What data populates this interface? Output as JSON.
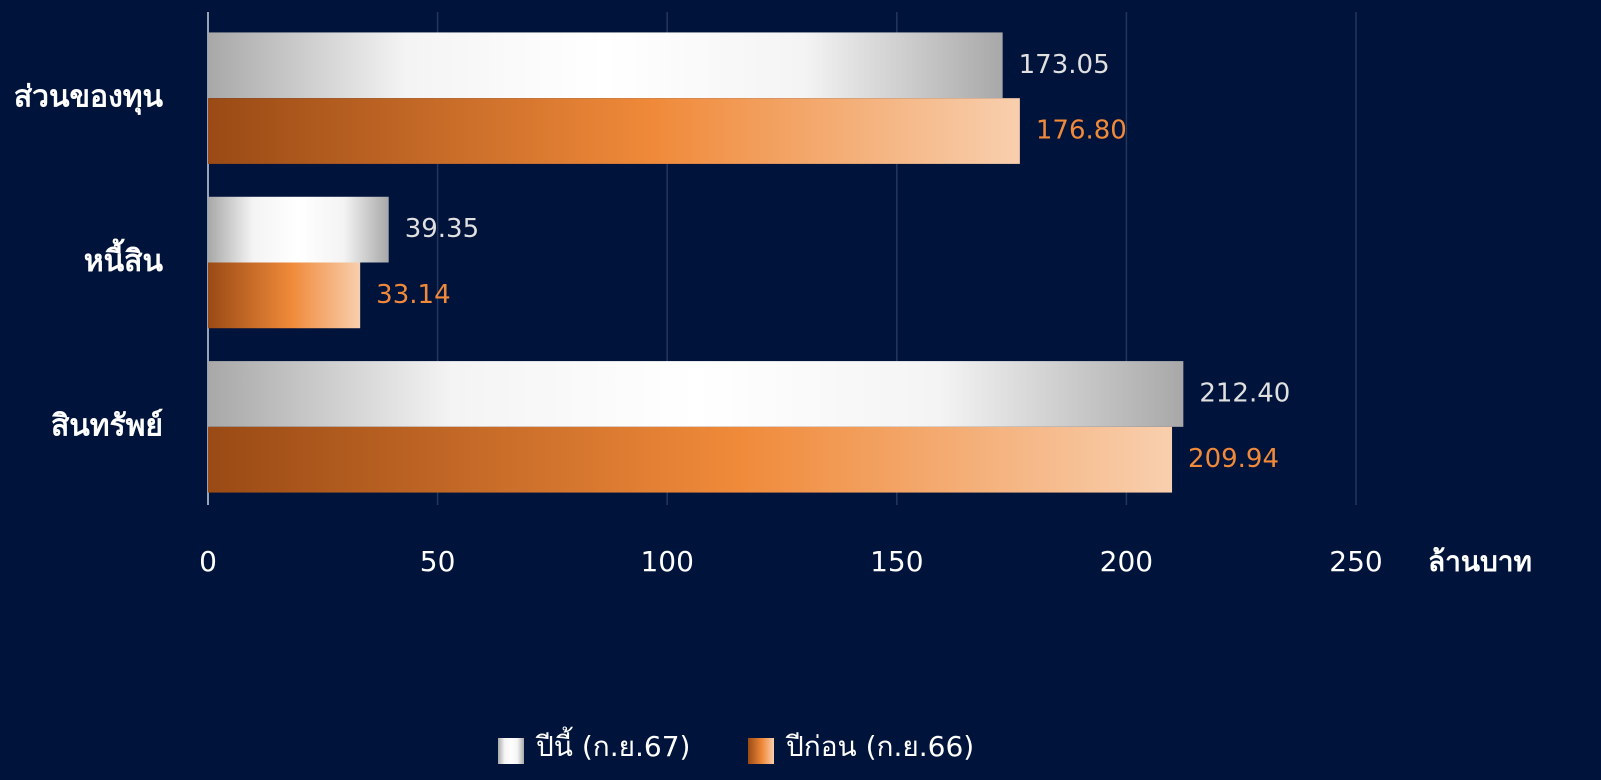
{
  "chart_data": {
    "type": "hbar",
    "categories": [
      "ส่วนของทุน",
      "หนี้สิน",
      "สินทรัพย์"
    ],
    "series": [
      {
        "name": "ปีนี้ (ก.ย.67)",
        "color": "#ffffff",
        "values": [
          173.05,
          39.35,
          212.4
        ],
        "value_labels": [
          "173.05",
          "39.35",
          "212.40"
        ]
      },
      {
        "name": "ปีก่อน (ก.ย.66)",
        "color": "#f08a3a",
        "values": [
          176.8,
          33.14,
          209.94
        ],
        "value_labels": [
          "176.80",
          "33.14",
          "209.94"
        ]
      }
    ],
    "xlim": [
      0,
      250
    ],
    "xticks": [
      0,
      50,
      100,
      150,
      200,
      250
    ],
    "x_label": "ล้านบาท",
    "grid": true,
    "legend": "bottom"
  }
}
